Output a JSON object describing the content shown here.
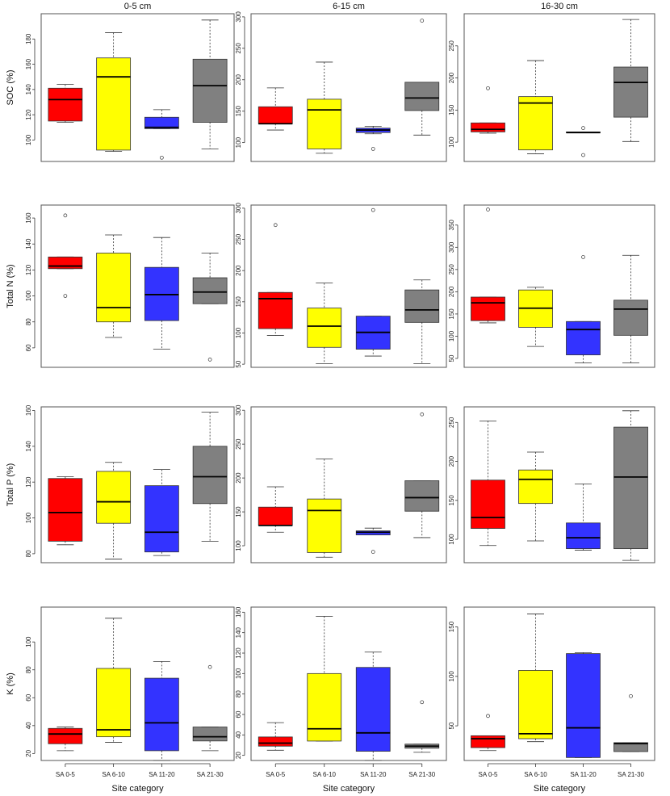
{
  "colors": {
    "SA 0-5": "#ff0000",
    "SA 6-10": "#ffff00",
    "SA 11-20": "#3333ff",
    "SA 21-30": "#808080"
  },
  "chart_data": {
    "type": "boxplot",
    "column_titles": [
      "0-5 cm",
      "6-15 cm",
      "16-30 cm"
    ],
    "row_labels": [
      "SOC (%)",
      "Total N (%)",
      "Total P (%)",
      "K (%)"
    ],
    "xlabel": "Site category",
    "categories": [
      "SA 0-5",
      "SA 6-10",
      "SA 11-20",
      "SA 21-30"
    ],
    "panels": [
      {
        "row": 0,
        "col": 0,
        "ylim": [
          83,
          200
        ],
        "yticks": [
          100,
          120,
          140,
          160,
          180
        ],
        "boxes": [
          {
            "min": 114,
            "q1": 115,
            "median": 132,
            "q3": 141,
            "max": 144,
            "outliers": []
          },
          {
            "min": 91,
            "q1": 92,
            "median": 150,
            "q3": 165,
            "max": 185,
            "outliers": []
          },
          {
            "min": 109,
            "q1": 109,
            "median": 110,
            "q3": 118,
            "max": 124,
            "outliers": [
              86
            ]
          },
          {
            "min": 93,
            "q1": 114,
            "median": 143,
            "q3": 164,
            "max": 195,
            "outliers": []
          }
        ]
      },
      {
        "row": 0,
        "col": 1,
        "ylim": [
          70,
          305
        ],
        "yticks": [
          100,
          150,
          200,
          250,
          300
        ],
        "boxes": [
          {
            "min": 120,
            "q1": 130,
            "median": 130,
            "q3": 157,
            "max": 187,
            "outliers": []
          },
          {
            "min": 83,
            "q1": 90,
            "median": 152,
            "q3": 169,
            "max": 228,
            "outliers": []
          },
          {
            "min": 114,
            "q1": 116,
            "median": 120,
            "q3": 123,
            "max": 126,
            "outliers": [
              90
            ]
          },
          {
            "min": 112,
            "q1": 151,
            "median": 171,
            "q3": 196,
            "max": 196,
            "outliers": [
              294
            ]
          }
        ]
      },
      {
        "row": 0,
        "col": 2,
        "ylim": [
          70,
          300
        ],
        "yticks": [
          100,
          150,
          200,
          250
        ],
        "boxes": [
          {
            "min": 114,
            "q1": 116,
            "median": 120,
            "q3": 130,
            "max": 130,
            "outliers": [
              184
            ]
          },
          {
            "min": 82,
            "q1": 88,
            "median": 161,
            "q3": 171,
            "max": 227,
            "outliers": []
          },
          {
            "min": 115,
            "q1": 115,
            "median": 115,
            "q3": 116,
            "max": 116,
            "outliers": [
              122,
              80
            ]
          },
          {
            "min": 101,
            "q1": 139,
            "median": 193,
            "q3": 217,
            "max": 291,
            "outliers": []
          }
        ]
      },
      {
        "row": 1,
        "col": 0,
        "ylim": [
          45,
          170
        ],
        "yticks": [
          60,
          80,
          100,
          120,
          140,
          160
        ],
        "boxes": [
          {
            "min": 121,
            "q1": 121,
            "median": 123,
            "q3": 130,
            "max": 130,
            "outliers": [
              162,
              100
            ]
          },
          {
            "min": 68,
            "q1": 80,
            "median": 91,
            "q3": 133,
            "max": 147,
            "outliers": []
          },
          {
            "min": 59,
            "q1": 81,
            "median": 101,
            "q3": 122,
            "max": 145,
            "outliers": []
          },
          {
            "min": 94,
            "q1": 94,
            "median": 103,
            "q3": 114,
            "max": 133,
            "outliers": [
              51
            ]
          }
        ]
      },
      {
        "row": 1,
        "col": 1,
        "ylim": [
          45,
          305
        ],
        "yticks": [
          50,
          100,
          150,
          200,
          250,
          300
        ],
        "boxes": [
          {
            "min": 96,
            "q1": 107,
            "median": 155,
            "q3": 165,
            "max": 165,
            "outliers": [
              273
            ]
          },
          {
            "min": 51,
            "q1": 77,
            "median": 111,
            "q3": 140,
            "max": 180,
            "outliers": []
          },
          {
            "min": 63,
            "q1": 74,
            "median": 101,
            "q3": 127,
            "max": 127,
            "outliers": [
              297
            ]
          },
          {
            "min": 51,
            "q1": 117,
            "median": 137,
            "q3": 169,
            "max": 185,
            "outliers": []
          }
        ]
      },
      {
        "row": 1,
        "col": 2,
        "ylim": [
          30,
          395
        ],
        "yticks": [
          50,
          100,
          150,
          200,
          250,
          300,
          350
        ],
        "boxes": [
          {
            "min": 130,
            "q1": 135,
            "median": 175,
            "q3": 188,
            "max": 188,
            "outliers": [
              385
            ]
          },
          {
            "min": 77,
            "q1": 120,
            "median": 163,
            "q3": 204,
            "max": 210,
            "outliers": []
          },
          {
            "min": 40,
            "q1": 58,
            "median": 115,
            "q3": 133,
            "max": 133,
            "outliers": [
              278
            ]
          },
          {
            "min": 40,
            "q1": 102,
            "median": 161,
            "q3": 181,
            "max": 282,
            "outliers": []
          }
        ]
      },
      {
        "row": 2,
        "col": 0,
        "ylim": [
          75,
          162
        ],
        "yticks": [
          80,
          100,
          120,
          140,
          160
        ],
        "boxes": [
          {
            "min": 85,
            "q1": 87,
            "median": 103,
            "q3": 122,
            "max": 123,
            "outliers": []
          },
          {
            "min": 77,
            "q1": 97,
            "median": 109,
            "q3": 126,
            "max": 131,
            "outliers": []
          },
          {
            "min": 79,
            "q1": 81,
            "median": 92,
            "q3": 118,
            "max": 127,
            "outliers": []
          },
          {
            "min": 87,
            "q1": 108,
            "median": 123,
            "q3": 140,
            "max": 159,
            "outliers": []
          }
        ]
      },
      {
        "row": 2,
        "col": 1,
        "ylim": [
          75,
          305
        ],
        "yticks": [
          100,
          150,
          200,
          250,
          300
        ],
        "boxes": [
          {
            "min": 120,
            "q1": 130,
            "median": 130,
            "q3": 157,
            "max": 187,
            "outliers": []
          },
          {
            "min": 83,
            "q1": 90,
            "median": 152,
            "q3": 169,
            "max": 228,
            "outliers": []
          },
          {
            "min": 116,
            "q1": 116,
            "median": 120,
            "q3": 122,
            "max": 126,
            "outliers": [
              91
            ]
          },
          {
            "min": 112,
            "q1": 151,
            "median": 171,
            "q3": 196,
            "max": 196,
            "outliers": [
              294
            ]
          }
        ]
      },
      {
        "row": 2,
        "col": 2,
        "ylim": [
          70,
          270
        ],
        "yticks": [
          100,
          150,
          200,
          250
        ],
        "boxes": [
          {
            "min": 92,
            "q1": 114,
            "median": 128,
            "q3": 176,
            "max": 252,
            "outliers": []
          },
          {
            "min": 98,
            "q1": 146,
            "median": 177,
            "q3": 189,
            "max": 212,
            "outliers": []
          },
          {
            "min": 86,
            "q1": 88,
            "median": 102,
            "q3": 121,
            "max": 171,
            "outliers": []
          },
          {
            "min": 73,
            "q1": 88,
            "median": 180,
            "q3": 244,
            "max": 265,
            "outliers": []
          }
        ]
      },
      {
        "row": 3,
        "col": 0,
        "ylim": [
          15,
          125
        ],
        "yticks": [
          20,
          40,
          60,
          80,
          100
        ],
        "boxes": [
          {
            "min": 22,
            "q1": 27,
            "median": 34,
            "q3": 38,
            "max": 39,
            "outliers": []
          },
          {
            "min": 28,
            "q1": 32,
            "median": 37,
            "q3": 81,
            "max": 117,
            "outliers": []
          },
          {
            "min": 15,
            "q1": 22,
            "median": 42,
            "q3": 74,
            "max": 86,
            "outliers": []
          },
          {
            "min": 22,
            "q1": 29,
            "median": 32,
            "q3": 39,
            "max": 39,
            "outliers": [
              82
            ]
          }
        ]
      },
      {
        "row": 3,
        "col": 1,
        "ylim": [
          15,
          165
        ],
        "yticks": [
          20,
          40,
          60,
          80,
          100,
          120,
          140,
          160
        ],
        "boxes": [
          {
            "min": 25,
            "q1": 29,
            "median": 32,
            "q3": 38,
            "max": 52,
            "outliers": []
          },
          {
            "min": 34,
            "q1": 34,
            "median": 46,
            "q3": 100,
            "max": 156,
            "outliers": []
          },
          {
            "min": 15,
            "q1": 24,
            "median": 42,
            "q3": 106,
            "max": 121,
            "outliers": []
          },
          {
            "min": 23,
            "q1": 27,
            "median": 29,
            "q3": 31,
            "max": 31,
            "outliers": [
              72
            ]
          }
        ]
      },
      {
        "row": 3,
        "col": 2,
        "ylim": [
          15,
          170
        ],
        "yticks": [
          50,
          100,
          150
        ],
        "boxes": [
          {
            "min": 25,
            "q1": 28,
            "median": 37,
            "q3": 40,
            "max": 40,
            "outliers": [
              60
            ]
          },
          {
            "min": 34,
            "q1": 37,
            "median": 42,
            "q3": 106,
            "max": 163,
            "outliers": []
          },
          {
            "min": 18,
            "q1": 18,
            "median": 48,
            "q3": 123,
            "max": 124,
            "outliers": []
          },
          {
            "min": 24,
            "q1": 24,
            "median": 32,
            "q3": 33,
            "max": 33,
            "outliers": [
              80
            ]
          }
        ]
      }
    ]
  }
}
